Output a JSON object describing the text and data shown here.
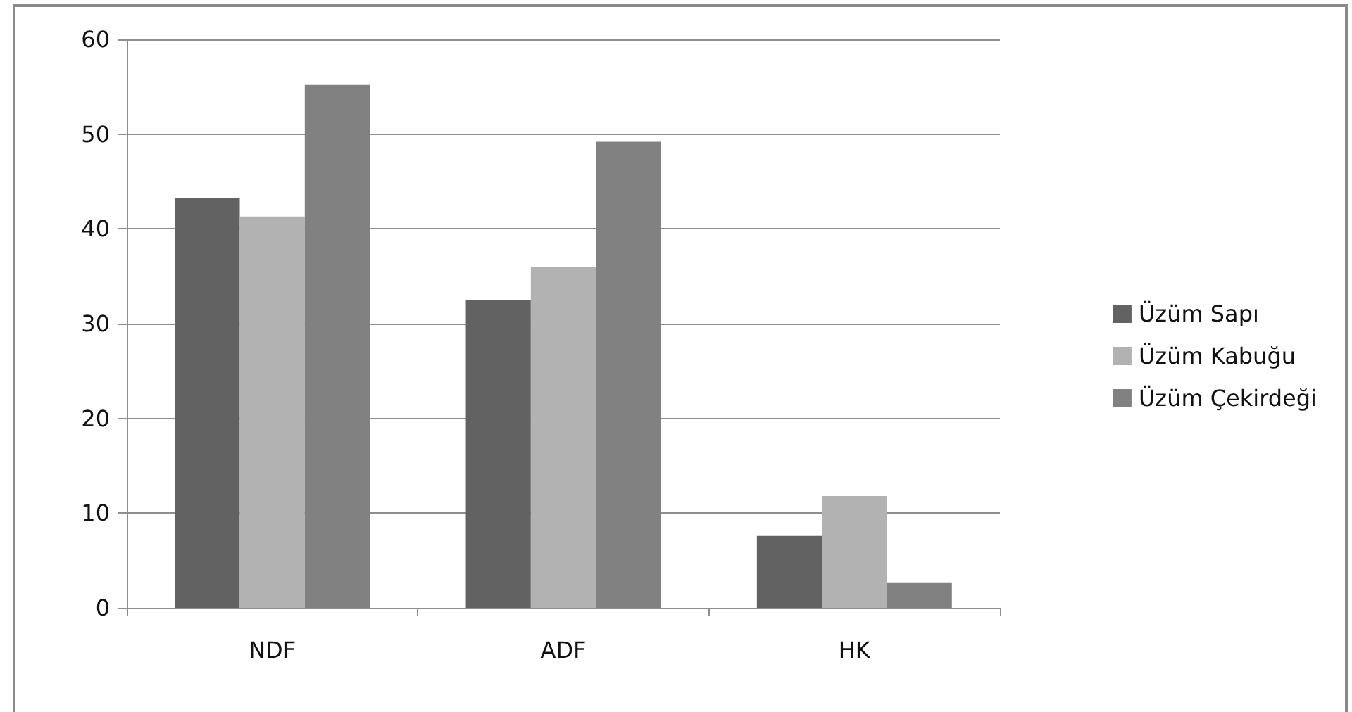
{
  "chart_data": {
    "type": "bar",
    "categories": [
      "NDF",
      "ADF",
      "HK"
    ],
    "series": [
      {
        "name": "Üzüm Sapı",
        "color": "#626262",
        "values": [
          43.3,
          32.5,
          7.6
        ]
      },
      {
        "name": "Üzüm Kabuğu",
        "color": "#b2b2b2",
        "values": [
          41.3,
          36.0,
          11.8
        ]
      },
      {
        "name": "Üzüm Çekirdeği",
        "color": "#818181",
        "values": [
          55.2,
          49.2,
          2.7
        ]
      }
    ],
    "ylim": [
      0,
      60
    ],
    "yticks": [
      0,
      10,
      20,
      30,
      40,
      50,
      60
    ],
    "grid": "y",
    "legend": "right"
  }
}
